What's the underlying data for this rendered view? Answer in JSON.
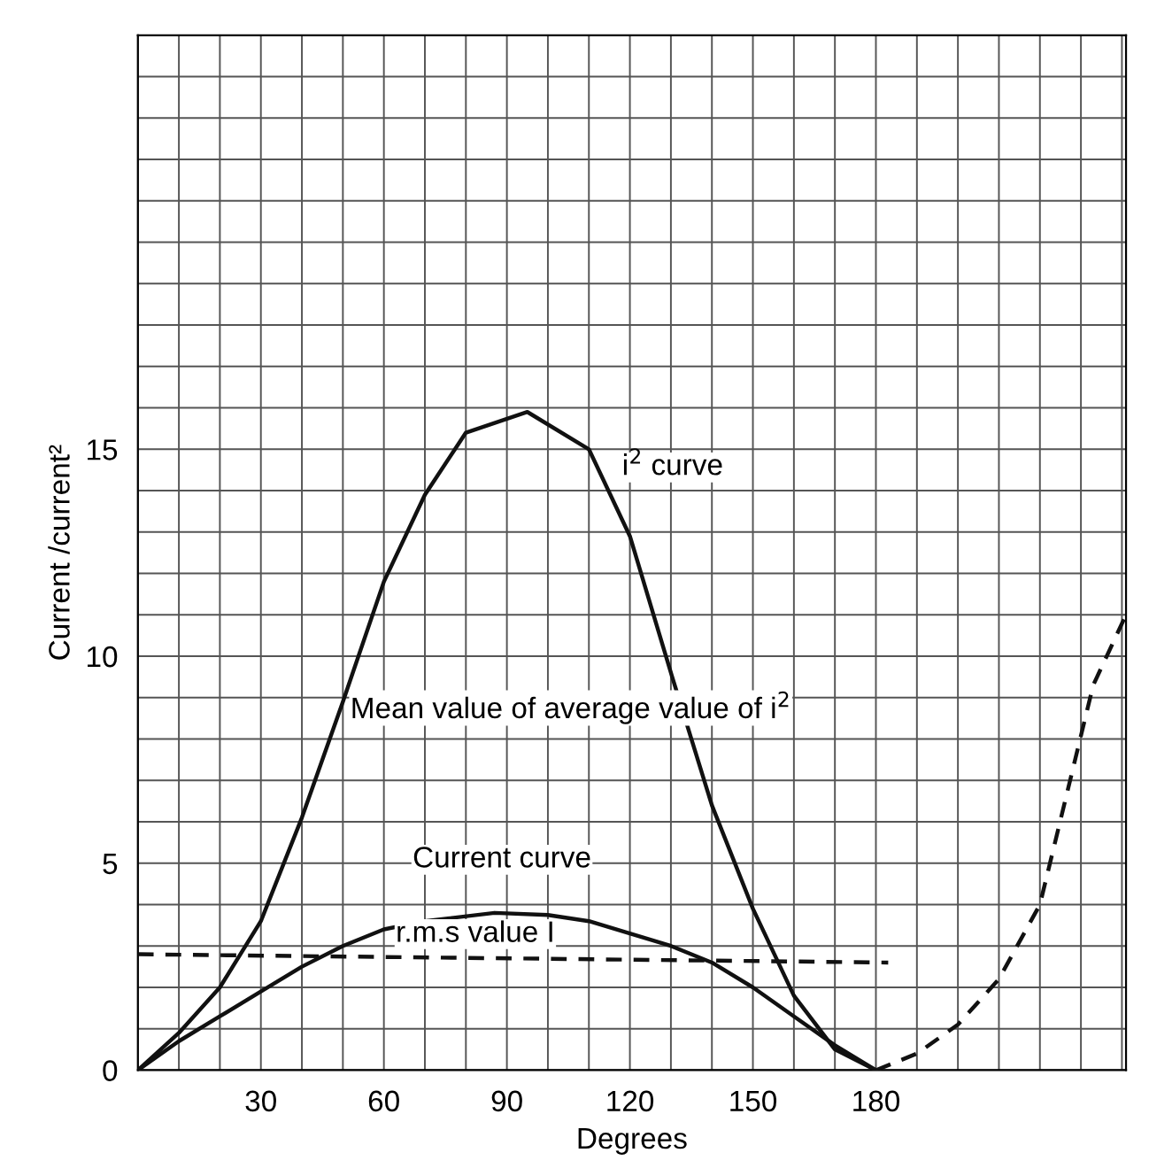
{
  "chart_data": {
    "type": "line",
    "xlabel": "Degrees",
    "ylabel": "Current /current²",
    "xlim": [
      0,
      241
    ],
    "ylim": [
      0,
      25
    ],
    "xticks": [
      {
        "value": 0,
        "label": null
      },
      {
        "value": 10,
        "label": null
      },
      {
        "value": 20,
        "label": null
      },
      30,
      {
        "value": 40,
        "label": null
      },
      {
        "value": 50,
        "label": null
      },
      60,
      {
        "value": 70,
        "label": null
      },
      {
        "value": 80,
        "label": null
      },
      90,
      {
        "value": 100,
        "label": null
      },
      {
        "value": 110,
        "label": null
      },
      120,
      {
        "value": 130,
        "label": null
      },
      {
        "value": 140,
        "label": null
      },
      150,
      {
        "value": 160,
        "label": null
      },
      {
        "value": 170,
        "label": null
      },
      180,
      {
        "value": 190,
        "label": null
      },
      {
        "value": 200,
        "label": null
      },
      {
        "value": 210,
        "label": null
      },
      {
        "value": 220,
        "label": null
      },
      {
        "value": 230,
        "label": null
      },
      {
        "value": 240,
        "label": null
      }
    ],
    "yticks": [
      0,
      {
        "value": 1,
        "label": null
      },
      {
        "value": 2,
        "label": null
      },
      {
        "value": 3,
        "label": null
      },
      {
        "value": 4,
        "label": null
      },
      5,
      {
        "value": 6,
        "label": null
      },
      {
        "value": 7,
        "label": null
      },
      {
        "value": 8,
        "label": null
      },
      {
        "value": 9,
        "label": null
      },
      10,
      {
        "value": 11,
        "label": null
      },
      {
        "value": 12,
        "label": null
      },
      {
        "value": 13,
        "label": null
      },
      {
        "value": 14,
        "label": null
      },
      15,
      {
        "value": 16,
        "label": null
      },
      {
        "value": 17,
        "label": null
      },
      {
        "value": 18,
        "label": null
      },
      {
        "value": 19,
        "label": null
      },
      {
        "value": 20,
        "label": null
      },
      {
        "value": 21,
        "label": null
      },
      {
        "value": 22,
        "label": null
      },
      {
        "value": 23,
        "label": null
      },
      {
        "value": 24,
        "label": null
      },
      {
        "value": 25,
        "label": null
      }
    ],
    "grid": true,
    "marker": "none",
    "series": [
      {
        "color": "#111111",
        "line_style": "solid",
        "x": [
          0,
          10,
          20,
          30,
          40,
          50,
          60,
          70,
          80,
          95,
          110,
          120,
          130,
          140,
          150,
          160,
          170,
          180
        ],
        "values": [
          0,
          0.9,
          2.0,
          3.6,
          6.1,
          8.9,
          11.8,
          13.9,
          15.4,
          15.9,
          15.0,
          12.9,
          9.6,
          6.4,
          3.9,
          1.8,
          0.5,
          0
        ]
      },
      {
        "color": "#111111",
        "line_style": "solid",
        "x": [
          0,
          10,
          20,
          30,
          40,
          50,
          60,
          70,
          87,
          100,
          110,
          120,
          130,
          140,
          150,
          160,
          170,
          180
        ],
        "values": [
          0,
          0.7,
          1.3,
          1.9,
          2.5,
          3.0,
          3.4,
          3.6,
          3.8,
          3.75,
          3.6,
          3.3,
          3.0,
          2.6,
          2.0,
          1.3,
          0.6,
          0
        ]
      },
      {
        "color": "#111111",
        "line_style": "dashed",
        "x": [
          0,
          183
        ],
        "values": [
          2.8,
          2.6
        ]
      },
      {
        "color": "#111111",
        "line_style": "dashed",
        "x": [
          180,
          190,
          200,
          210,
          220,
          233,
          241
        ],
        "values": [
          0,
          0.4,
          1.1,
          2.2,
          4.0,
          9.3,
          11.0
        ]
      }
    ],
    "annotations": [
      "i$^{2}$ curve",
      "Mean value of average value of i$^{2}$",
      "Current curve",
      "r.m.s value I"
    ]
  }
}
